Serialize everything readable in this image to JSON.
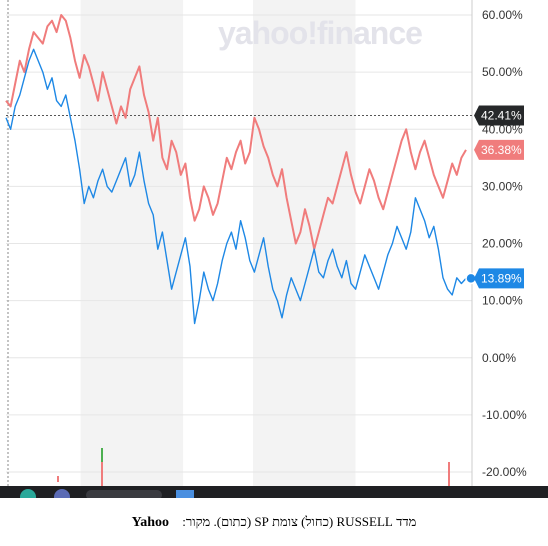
{
  "watermark": "yahoo!finance",
  "caption": {
    "text": "מדד RUSSELL (כחול) צומת SP (כתום). מקור:",
    "source": "Yahoo"
  },
  "colors": {
    "blue": "#1e88e5",
    "red": "#f07c7c",
    "band": "#f3f3f3",
    "axis_dark": "#333333",
    "label_dark": "#26282a"
  },
  "chart_data": {
    "type": "line",
    "title": "",
    "xlabel": "",
    "ylabel": "",
    "ylim": [
      -20,
      60
    ],
    "y_ticks": [
      "60.00%",
      "50.00%",
      "40.00%",
      "30.00%",
      "20.00%",
      "10.00%",
      "0.00%",
      "-10.00%",
      "-20.00%"
    ],
    "y_tick_values": [
      60,
      50,
      40,
      30,
      20,
      10,
      0,
      -10,
      -20
    ],
    "reference_value": 42.41,
    "reference_label": "42.41%",
    "x_index_range": [
      0,
      100
    ],
    "series": [
      {
        "color": "red",
        "end_label": "36.38%",
        "values": [
          45,
          44,
          48,
          52,
          50,
          54,
          57,
          56,
          55,
          58,
          59,
          57,
          60,
          59,
          56,
          52,
          49,
          53,
          51,
          48,
          45,
          50,
          47,
          44,
          41,
          44,
          42,
          47,
          49,
          51,
          46,
          43,
          38,
          42,
          35,
          33,
          38,
          36,
          32,
          34,
          28,
          24,
          26,
          30,
          28,
          25,
          27,
          31,
          35,
          33,
          36,
          38,
          34,
          36,
          42,
          40,
          37,
          35,
          32,
          30,
          33,
          28,
          24,
          20,
          22,
          26,
          23,
          19,
          22,
          25,
          28,
          27,
          30,
          33,
          36,
          32,
          29,
          27,
          30,
          33,
          31,
          28,
          26,
          29,
          32,
          35,
          38,
          40,
          36,
          33,
          36,
          38,
          35,
          32,
          30,
          28,
          31,
          34,
          32,
          35,
          36.38
        ]
      },
      {
        "color": "blue",
        "end_label": "13.89%",
        "values": [
          42,
          40,
          44,
          46,
          49,
          52,
          54,
          52,
          50,
          47,
          49,
          45,
          44,
          46,
          42,
          38,
          33,
          27,
          30,
          28,
          31,
          33,
          30,
          29,
          31,
          33,
          35,
          30,
          32,
          36,
          31,
          27,
          25,
          19,
          22,
          17,
          12,
          15,
          18,
          21,
          16,
          6,
          10,
          15,
          12,
          10,
          13,
          17,
          20,
          22,
          19,
          24,
          21,
          17,
          15,
          18,
          21,
          16,
          12,
          10,
          7,
          11,
          14,
          12,
          10,
          13,
          16,
          19,
          15,
          14,
          17,
          19,
          16,
          14,
          17,
          13,
          12,
          15,
          18,
          16,
          14,
          12,
          15,
          18,
          20,
          23,
          21,
          19,
          22,
          28,
          26,
          24,
          21,
          23,
          19,
          14,
          12,
          11,
          14,
          13,
          13.89
        ]
      }
    ],
    "band_fractions": [
      [
        0.16,
        0.38
      ],
      [
        0.53,
        0.75
      ]
    ]
  }
}
